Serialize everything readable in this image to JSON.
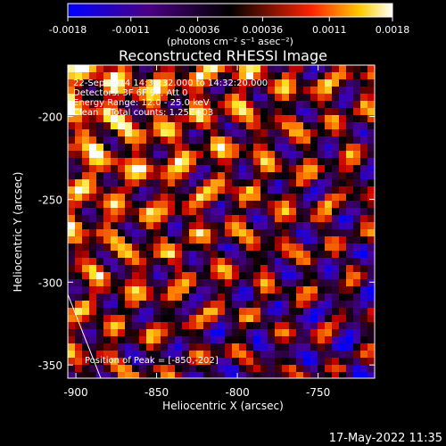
{
  "chart_data": {
    "type": "heatmap",
    "title": "Reconstructed RHESSI Image",
    "xlabel": "Heliocentric X (arcsec)",
    "ylabel": "Heliocentric Y (arcsec)",
    "xlim": [
      -905,
      -715
    ],
    "ylim": [
      -358,
      -169
    ],
    "x_ticks": [
      -900,
      -850,
      -800,
      -750
    ],
    "x_tick_labels": [
      "-900",
      "-850",
      "-800",
      "-750"
    ],
    "y_ticks": [
      -350,
      -300,
      -250,
      -200
    ],
    "y_tick_labels": [
      "-350",
      "-300",
      "-250",
      "-200"
    ],
    "colorbar": {
      "range": [
        -0.0018,
        0.0018
      ],
      "ticks": [
        -0.0018,
        -0.0011,
        -0.00036,
        0.00036,
        0.0011,
        0.0018
      ],
      "tick_labels": [
        "-0.0018",
        "-0.0011",
        "-0.00036",
        "0.00036",
        "0.0011",
        "0.0018"
      ],
      "unit_label": "(photons cm⁻² s⁻¹ asec⁻²)"
    },
    "colormap": [
      "#0000ff",
      "#4b0082",
      "#000000",
      "#ff0000",
      "#ffff00",
      "#ffffff"
    ],
    "annotations": [
      "22-Sep-2014 14:30:32.000 to 14:32:20.000",
      "Detectors: 3F 6F 9F, Att 0",
      "Energy Range: 12.0 - 25.0 keV",
      "Clean    Total counts: 1.25E+03"
    ],
    "peak_label": "Position of Peak = [-850,-202]",
    "peak_position": [
      -850,
      -202
    ],
    "grid": false
  },
  "footer": {
    "timestamp": "17-May-2022 11:35"
  }
}
